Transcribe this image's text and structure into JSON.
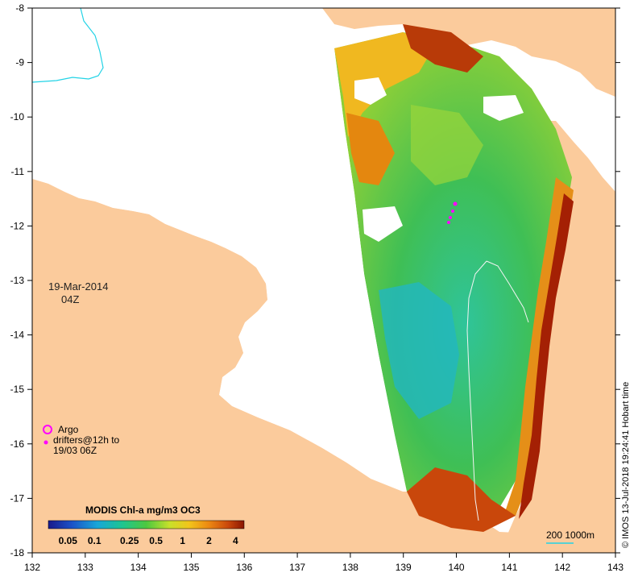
{
  "map": {
    "date": "19-Mar-2014",
    "time": "04Z",
    "credit": "© IMOS 13-Jul-2018 19:24:41 Hobart time",
    "land_color": "#fbcb9c",
    "coast_cyan_color": "#22d3e6",
    "x_ticks": [
      "132",
      "133",
      "134",
      "135",
      "136",
      "137",
      "138",
      "139",
      "140",
      "141",
      "142",
      "143"
    ],
    "y_ticks": [
      "-8",
      "-9",
      "-10",
      "-11",
      "-12",
      "-13",
      "-14",
      "-15",
      "-16",
      "-17",
      "-18"
    ]
  },
  "legend": {
    "line1": "Argo",
    "line2": "drifters@12h to",
    "line3": "19/03 06Z",
    "argo_color": "#ff00ff",
    "drifter_color": "#ff00ff"
  },
  "colorbar": {
    "title": "MODIS Chl-a mg/m3 OC3",
    "ticks": [
      "0.05",
      "0.1",
      "0.25",
      "0.5",
      "1",
      "2",
      "4"
    ],
    "colors": [
      "#1a1aa0",
      "#1b6fd6",
      "#18b4d8",
      "#1fc48a",
      "#45c845",
      "#c7e02a",
      "#f1c21c",
      "#ee8a12",
      "#d0520c",
      "#a01e04"
    ]
  },
  "scale": {
    "label": "200  1000m"
  }
}
